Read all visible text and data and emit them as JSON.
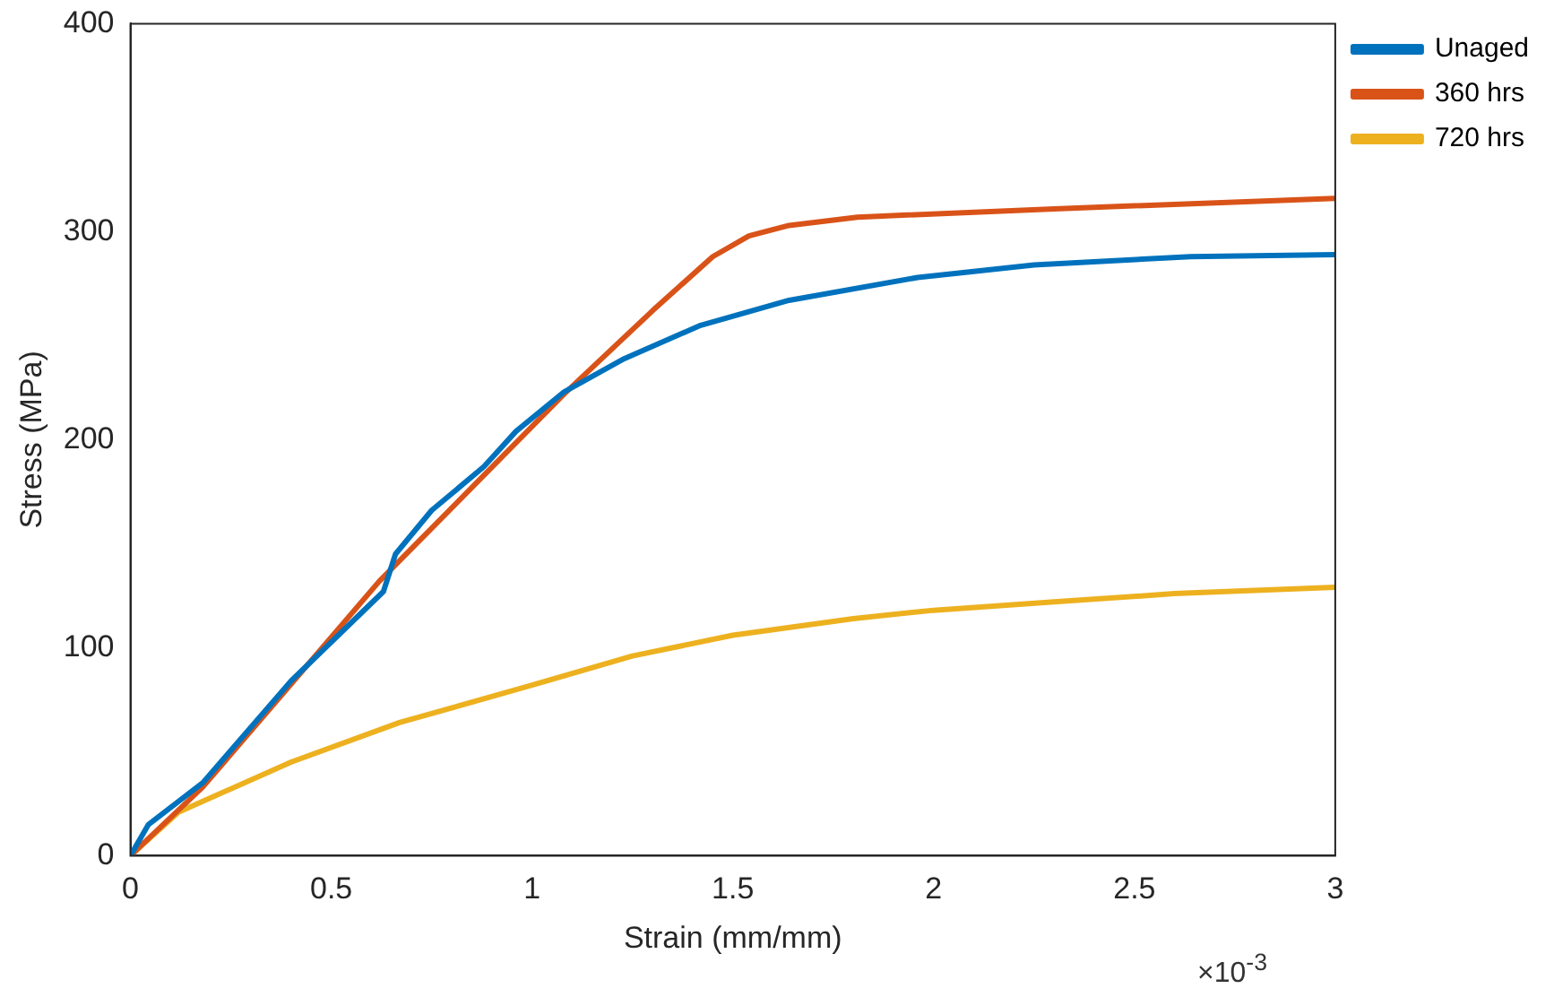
{
  "chart_data": {
    "type": "line",
    "xlabel": "Strain (mm/mm)",
    "ylabel": "Stress (MPa)",
    "annotations": [
      "×10$^{-3}$"
    ],
    "xlim": [
      0,
      3
    ],
    "xticks": [
      0,
      0.5,
      1,
      1.5,
      2,
      2.5,
      3
    ],
    "ylim": [
      0,
      400
    ],
    "yticks": [
      0,
      100,
      200,
      300,
      400
    ],
    "grid": false,
    "legend": "top right",
    "marker": "none",
    "line_style": "solid",
    "series": [
      {
        "name": "Unaged",
        "color": "#0072bd",
        "x": [
          0,
          0.045,
          0.18,
          0.4,
          0.63,
          0.66,
          0.75,
          0.88,
          0.96,
          1.08,
          1.23,
          1.42,
          1.64,
          1.96,
          2.25,
          2.64,
          3
        ],
        "values": [
          0,
          15,
          35,
          84,
          127,
          145,
          166,
          187,
          204,
          223,
          239,
          255,
          267,
          278,
          284,
          288,
          289
        ]
      },
      {
        "name": "360 hrs",
        "color": "#d95319",
        "x": [
          0,
          0.06,
          0.18,
          0.62,
          1.08,
          1.3,
          1.45,
          1.54,
          1.64,
          1.81,
          2.3,
          3
        ],
        "values": [
          0,
          11,
          33,
          132,
          222,
          262,
          288,
          298,
          303,
          307,
          311,
          316
        ]
      },
      {
        "name": "720 hrs",
        "color": "#edb120",
        "x": [
          0,
          0.12,
          0.4,
          0.67,
          1,
          1.25,
          1.5,
          1.8,
          2,
          2.3,
          2.6,
          3
        ],
        "values": [
          0,
          21,
          45,
          64,
          82,
          96,
          106,
          114,
          118,
          122,
          126,
          129
        ]
      }
    ]
  }
}
